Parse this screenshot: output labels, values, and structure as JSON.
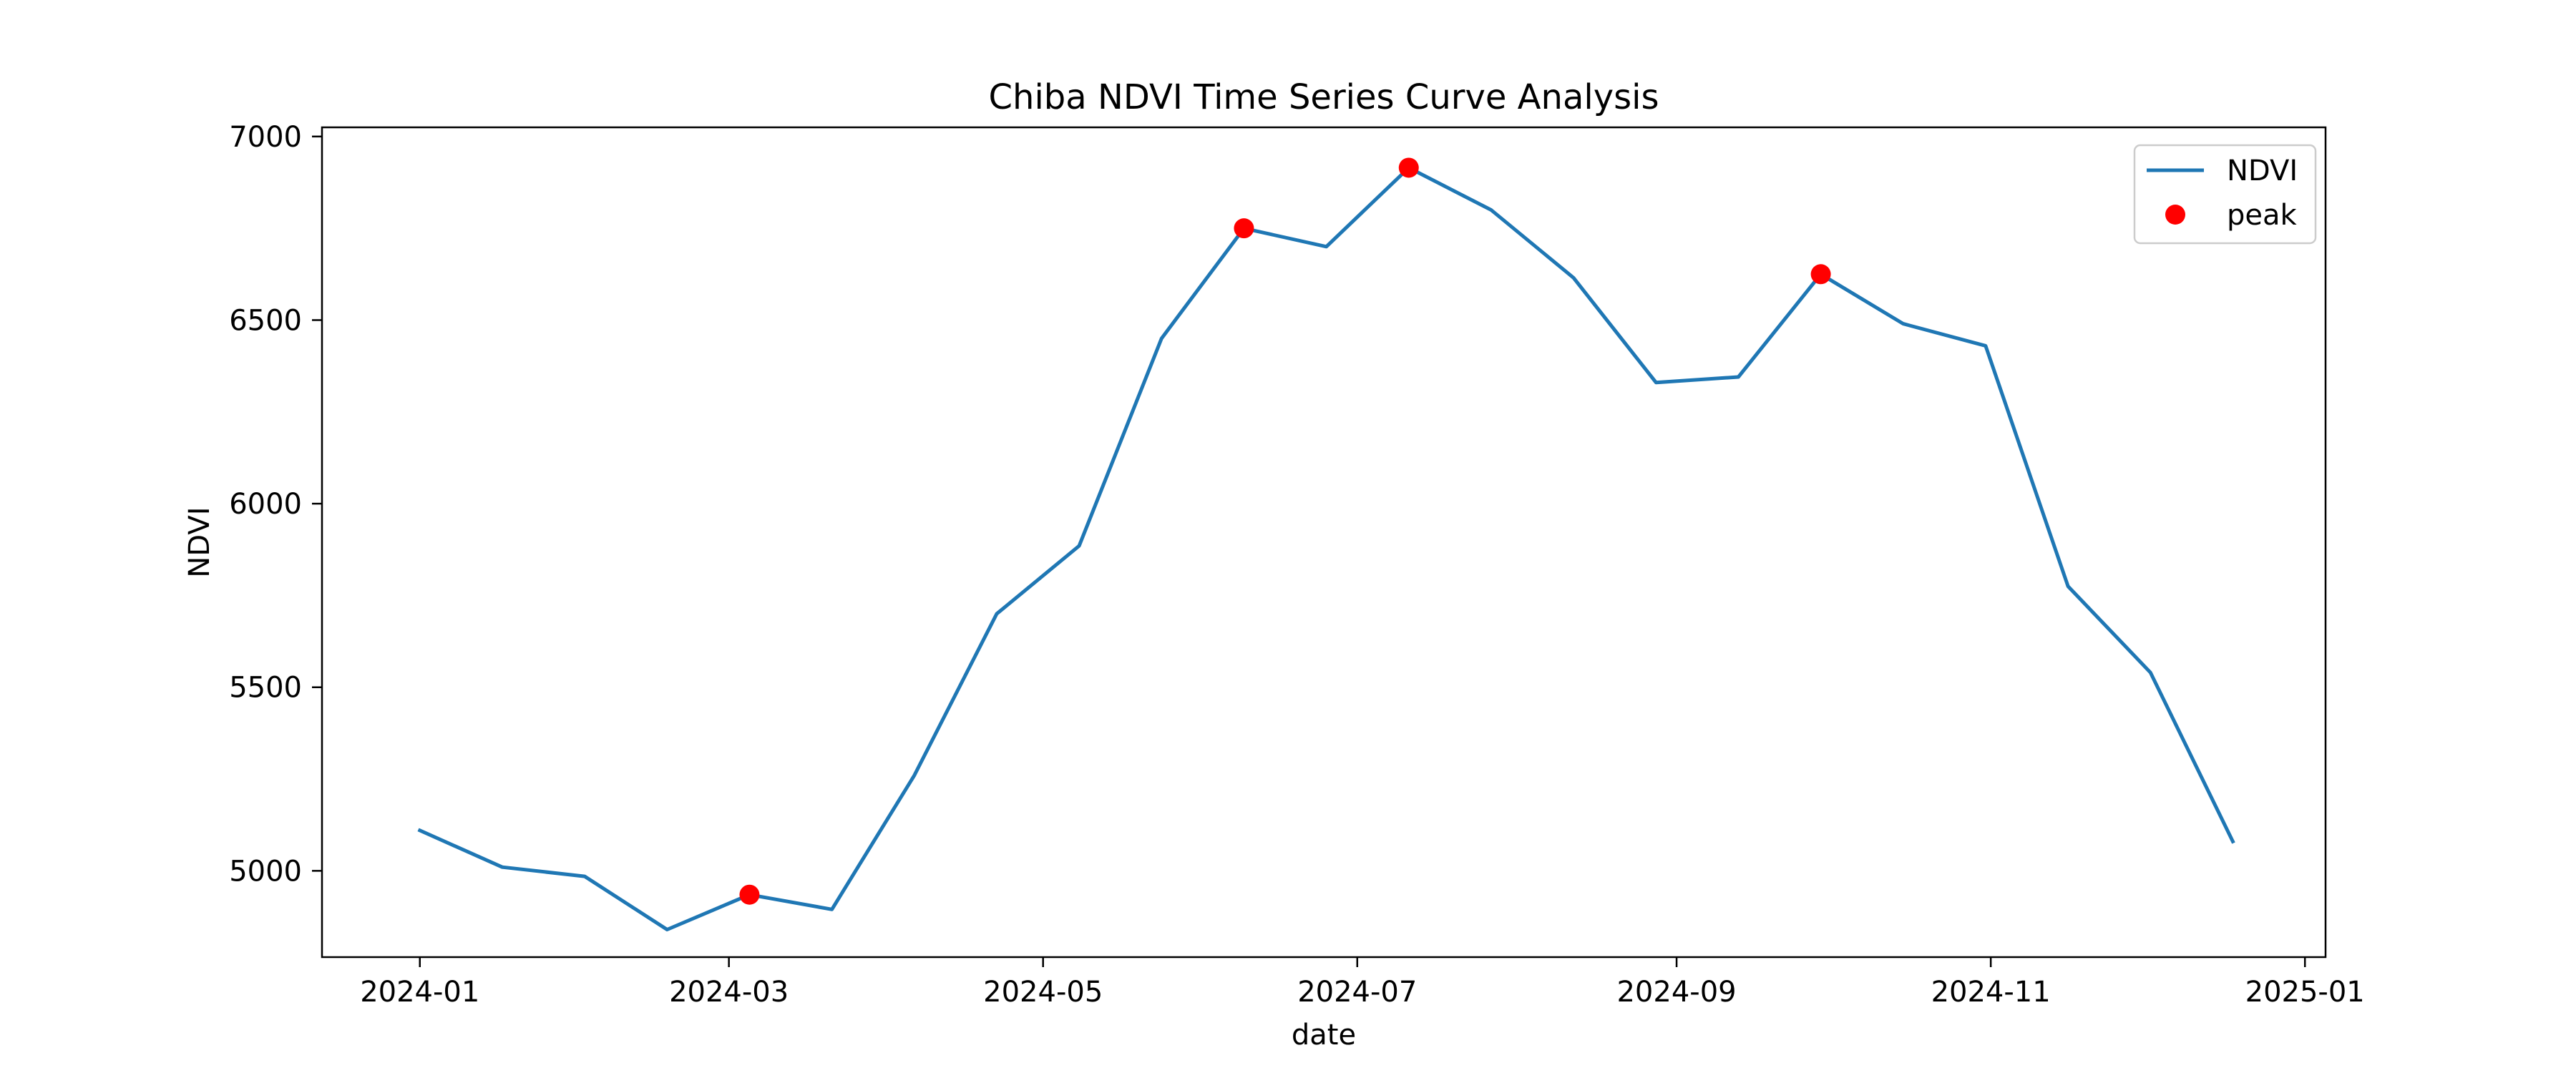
{
  "chart_data": {
    "type": "line",
    "title": "Chiba NDVI Time Series Curve Analysis",
    "xlabel": "date",
    "ylabel": "NDVI",
    "xlim": [
      "2023-12-13",
      "2025-01-05"
    ],
    "ylim": [
      4765,
      7025
    ],
    "x_ticks": [
      "2024-01",
      "2024-03",
      "2024-05",
      "2024-07",
      "2024-09",
      "2024-11",
      "2025-01"
    ],
    "x_tick_dates": [
      "2024-01-01",
      "2024-03-01",
      "2024-05-01",
      "2024-07-01",
      "2024-09-01",
      "2024-11-01",
      "2025-01-01"
    ],
    "y_ticks": [
      5000,
      5500,
      6000,
      6500,
      7000
    ],
    "grid": false,
    "legend": {
      "position": "top-right",
      "entries": [
        {
          "label": "NDVI",
          "marker": "line",
          "color": "#1f77b4"
        },
        {
          "label": "peak",
          "marker": "dot",
          "color": "#ff0000"
        }
      ]
    },
    "series": [
      {
        "name": "NDVI",
        "color": "#1f77b4",
        "x": [
          "2024-01-01",
          "2024-01-17",
          "2024-02-02",
          "2024-02-18",
          "2024-03-05",
          "2024-03-21",
          "2024-04-06",
          "2024-04-22",
          "2024-05-08",
          "2024-05-24",
          "2024-06-09",
          "2024-06-25",
          "2024-07-11",
          "2024-07-27",
          "2024-08-12",
          "2024-08-28",
          "2024-09-13",
          "2024-09-29",
          "2024-10-15",
          "2024-10-31",
          "2024-11-16",
          "2024-12-02",
          "2024-12-18"
        ],
        "y": [
          5110,
          5010,
          4985,
          4840,
          4935,
          4895,
          5260,
          5700,
          5885,
          6450,
          6750,
          6700,
          6915,
          6800,
          6615,
          6330,
          6345,
          6625,
          6490,
          6430,
          5775,
          5540,
          5080
        ]
      },
      {
        "name": "peak",
        "color": "#ff0000",
        "x": [
          "2024-03-05",
          "2024-06-09",
          "2024-07-11",
          "2024-09-29"
        ],
        "y": [
          4935,
          6750,
          6915,
          6625
        ]
      }
    ]
  }
}
